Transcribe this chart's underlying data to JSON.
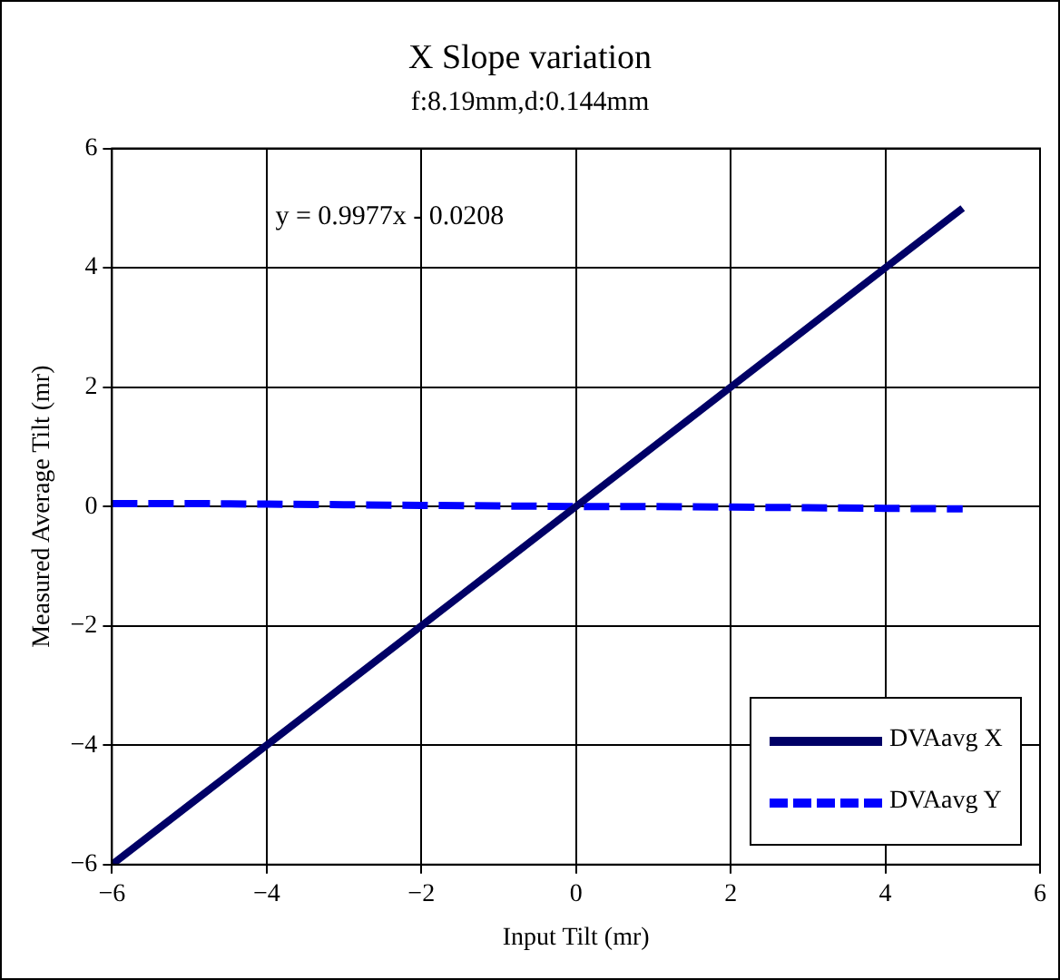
{
  "chart_data": {
    "type": "line",
    "title": "X Slope variation",
    "subtitle": "f:8.19mm,d:0.144mm",
    "xlabel": "Input Tilt (mr)",
    "ylabel": "Measured Average Tilt (mr)",
    "annotations": [
      "y = 0.9977x - 0.0208"
    ],
    "x": [
      -6,
      -5,
      -4,
      -3,
      -2,
      -1,
      0,
      1,
      2,
      3,
      4,
      5
    ],
    "series": [
      {
        "name": "DVAavg X",
        "color": "#000066",
        "line_style": "solid",
        "values": [
          -6.0,
          -5.0,
          -4.0,
          -3.0,
          -2.0,
          -1.0,
          0.0,
          1.0,
          2.0,
          3.0,
          4.0,
          5.0
        ]
      },
      {
        "name": "DVAavg Y",
        "color": "#0000ff",
        "line_style": "dashed",
        "values": [
          0.05,
          0.05,
          0.04,
          0.03,
          0.02,
          0.01,
          0.0,
          0.0,
          -0.01,
          -0.02,
          -0.03,
          -0.04
        ]
      }
    ],
    "xlim": [
      -6,
      6
    ],
    "xticks": [
      -6,
      -4,
      -2,
      0,
      2,
      4,
      6
    ],
    "ylim": [
      -6,
      6
    ],
    "yticks": [
      -6,
      -4,
      -2,
      0,
      2,
      4,
      6
    ],
    "grid": true,
    "legend": "bottom right",
    "marker": "none"
  }
}
